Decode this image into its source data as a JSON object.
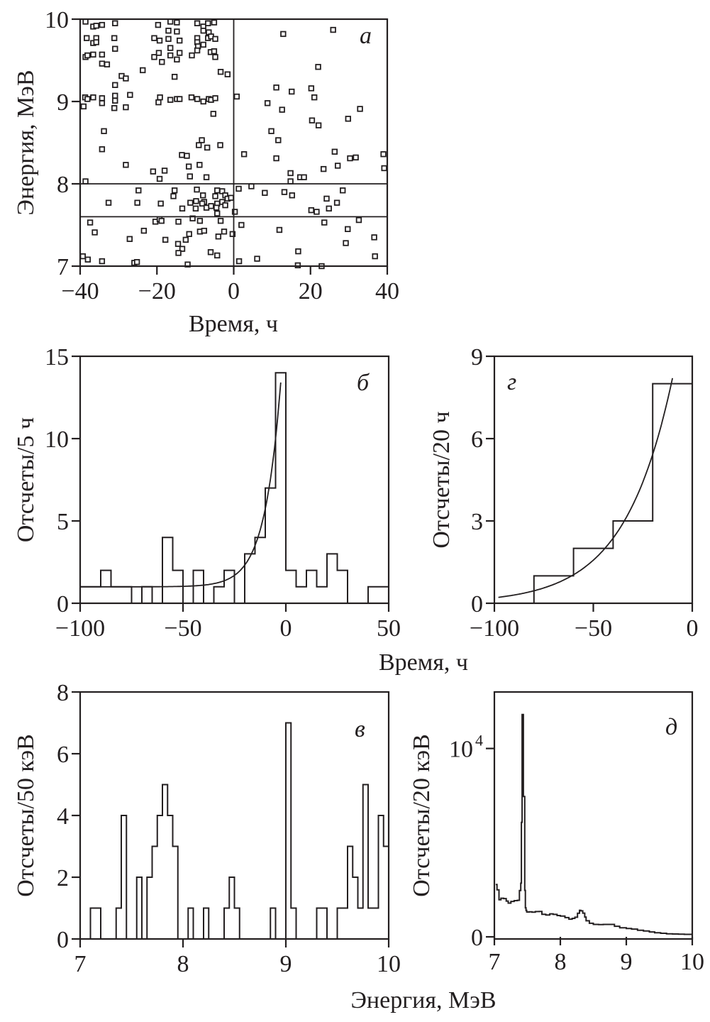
{
  "chart_data": [
    {
      "id": "a",
      "type": "scatter",
      "panel_label": "а",
      "xlabel": "Время, ч",
      "ylabel": "Энергия, МэВ",
      "xlim": [
        -40,
        40
      ],
      "ylim": [
        7,
        10
      ],
      "xticks": [
        -40,
        -20,
        0,
        20,
        40
      ],
      "xtick_labels": [
        "−40",
        "−20",
        "0",
        "20",
        "40"
      ],
      "yticks": [
        7,
        8,
        9,
        10
      ],
      "ytick_labels": [
        "7",
        "8",
        "9",
        "10"
      ],
      "reference_lines": {
        "horizontal": [
          8.0,
          7.6
        ],
        "vertical": [
          0
        ]
      },
      "marker": "open-square",
      "points": [
        [
          -38.6,
          9.97
        ],
        [
          -36.6,
          9.91
        ],
        [
          -35.8,
          9.92
        ],
        [
          -34.3,
          9.93
        ],
        [
          -30.9,
          9.95
        ],
        [
          -38.3,
          9.77
        ],
        [
          -35.8,
          9.77
        ],
        [
          -36.6,
          9.71
        ],
        [
          -35.8,
          9.72
        ],
        [
          -31.1,
          9.77
        ],
        [
          -30.9,
          9.64
        ],
        [
          -38.6,
          9.54
        ],
        [
          -38.1,
          9.56
        ],
        [
          -36.6,
          9.57
        ],
        [
          -34.3,
          9.57
        ],
        [
          -34.3,
          9.46
        ],
        [
          -33.0,
          9.45
        ],
        [
          -29.2,
          9.31
        ],
        [
          -28.1,
          9.28
        ],
        [
          -23.7,
          9.38
        ],
        [
          -30.9,
          9.2
        ],
        [
          -38.7,
          9.05
        ],
        [
          -38.1,
          9.03
        ],
        [
          -36.6,
          9.05
        ],
        [
          -34.3,
          9.04
        ],
        [
          -34.3,
          8.98
        ],
        [
          -30.9,
          9.07
        ],
        [
          -30.9,
          9.01
        ],
        [
          -31.1,
          8.92
        ],
        [
          -28.1,
          8.93
        ],
        [
          -27.0,
          9.08
        ],
        [
          -39.1,
          8.94
        ],
        [
          -33.8,
          8.64
        ],
        [
          -19.7,
          9.93
        ],
        [
          -16.5,
          9.97
        ],
        [
          -14.8,
          9.96
        ],
        [
          -17.0,
          9.86
        ],
        [
          -14.8,
          9.85
        ],
        [
          -20.7,
          9.77
        ],
        [
          -19.3,
          9.74
        ],
        [
          -17.0,
          9.76
        ],
        [
          -14.1,
          9.74
        ],
        [
          -16.5,
          9.65
        ],
        [
          -20.7,
          9.54
        ],
        [
          -19.5,
          9.59
        ],
        [
          -18.7,
          9.48
        ],
        [
          -16.5,
          9.56
        ],
        [
          -14.1,
          9.59
        ],
        [
          -14.8,
          9.51
        ],
        [
          -15.4,
          9.3
        ],
        [
          -19.6,
          8.99
        ],
        [
          -19.2,
          9.05
        ],
        [
          -16.5,
          9.02
        ],
        [
          -14.8,
          9.03
        ],
        [
          -14.1,
          9.03
        ],
        [
          -11.0,
          9.05
        ],
        [
          -9.5,
          9.03
        ],
        [
          -7.9,
          9.0
        ],
        [
          -6.5,
          9.03
        ],
        [
          -5.9,
          9.02
        ],
        [
          -4.8,
          9.04
        ],
        [
          -5.3,
          8.85
        ],
        [
          -9.5,
          9.95
        ],
        [
          -7.9,
          9.91
        ],
        [
          -6.7,
          9.95
        ],
        [
          -5.1,
          9.96
        ],
        [
          -7.9,
          9.86
        ],
        [
          -6.5,
          9.84
        ],
        [
          -6.7,
          9.77
        ],
        [
          -5.9,
          9.79
        ],
        [
          -4.8,
          9.76
        ],
        [
          -9.5,
          9.77
        ],
        [
          -9.5,
          9.72
        ],
        [
          -9.3,
          9.67
        ],
        [
          -7.9,
          9.69
        ],
        [
          -9.5,
          9.62
        ],
        [
          -10.9,
          9.56
        ],
        [
          -6.0,
          9.6
        ],
        [
          -5.1,
          9.61
        ],
        [
          -4.8,
          9.54
        ],
        [
          -3.4,
          9.36
        ],
        [
          -1.6,
          9.33
        ],
        [
          -34.3,
          8.42
        ],
        [
          -8.3,
          8.53
        ],
        [
          -9.1,
          8.47
        ],
        [
          -6.9,
          8.44
        ],
        [
          -3.5,
          8.47
        ],
        [
          -13.5,
          8.35
        ],
        [
          -12.2,
          8.34
        ],
        [
          -28.1,
          8.23
        ],
        [
          -11.7,
          8.21
        ],
        [
          -8.9,
          8.23
        ],
        [
          -21.0,
          8.15
        ],
        [
          -18.0,
          8.16
        ],
        [
          -19.3,
          8.06
        ],
        [
          -11.4,
          8.09
        ],
        [
          -7.1,
          8.08
        ],
        [
          -38.6,
          8.03
        ],
        [
          -24.8,
          7.92
        ],
        [
          -15.4,
          7.92
        ],
        [
          -15.7,
          7.85
        ],
        [
          -9.6,
          7.93
        ],
        [
          -8.0,
          7.86
        ],
        [
          -4.3,
          7.92
        ],
        [
          -3.0,
          7.91
        ],
        [
          -4.8,
          7.85
        ],
        [
          -2.2,
          7.86
        ],
        [
          -32.6,
          7.77
        ],
        [
          -25.1,
          7.77
        ],
        [
          -19.0,
          7.76
        ],
        [
          -11.3,
          7.77
        ],
        [
          -9.8,
          7.79
        ],
        [
          -7.7,
          7.78
        ],
        [
          -8.2,
          7.76
        ],
        [
          -4.3,
          7.76
        ],
        [
          -3.0,
          7.78
        ],
        [
          -2.2,
          7.74
        ],
        [
          -1.6,
          7.82
        ],
        [
          -0.7,
          7.83
        ],
        [
          -13.4,
          7.7
        ],
        [
          -9.9,
          7.7
        ],
        [
          -7.1,
          7.71
        ],
        [
          -5.9,
          7.73
        ],
        [
          -4.5,
          7.71
        ],
        [
          -4.3,
          7.64
        ],
        [
          0.3,
          7.66
        ],
        [
          -37.4,
          7.53
        ],
        [
          -20.4,
          7.54
        ],
        [
          -19.3,
          7.57
        ],
        [
          -18.8,
          7.55
        ],
        [
          -14.4,
          7.54
        ],
        [
          -10.7,
          7.58
        ],
        [
          -8.8,
          7.55
        ],
        [
          -3.4,
          7.55
        ],
        [
          -36.2,
          7.41
        ],
        [
          -23.4,
          7.43
        ],
        [
          -27.1,
          7.33
        ],
        [
          -17.8,
          7.32
        ],
        [
          -11.6,
          7.39
        ],
        [
          -12.5,
          7.32
        ],
        [
          -8.8,
          7.42
        ],
        [
          -7.7,
          7.43
        ],
        [
          -4.0,
          7.36
        ],
        [
          -2.5,
          7.42
        ],
        [
          -0.3,
          7.39
        ],
        [
          -14.5,
          7.27
        ],
        [
          -13.4,
          7.21
        ],
        [
          -14.4,
          7.16
        ],
        [
          -6.0,
          7.17
        ],
        [
          -4.3,
          7.13
        ],
        [
          -39.3,
          7.12
        ],
        [
          -38.0,
          7.08
        ],
        [
          -34.3,
          7.06
        ],
        [
          -25.9,
          7.04
        ],
        [
          -25.2,
          7.05
        ],
        [
          -12.0,
          7.02
        ],
        [
          12.9,
          9.82
        ],
        [
          25.9,
          9.87
        ],
        [
          22.0,
          9.42
        ],
        [
          11.1,
          9.17
        ],
        [
          15.1,
          9.12
        ],
        [
          20.2,
          9.16
        ],
        [
          21.0,
          9.05
        ],
        [
          0.8,
          9.06
        ],
        [
          8.8,
          8.98
        ],
        [
          12.6,
          8.9
        ],
        [
          32.9,
          8.91
        ],
        [
          29.8,
          8.79
        ],
        [
          20.4,
          8.77
        ],
        [
          22.1,
          8.71
        ],
        [
          9.8,
          8.64
        ],
        [
          11.6,
          8.53
        ],
        [
          2.7,
          8.36
        ],
        [
          11.1,
          8.31
        ],
        [
          26.3,
          8.39
        ],
        [
          30.3,
          8.31
        ],
        [
          31.8,
          8.32
        ],
        [
          39.0,
          8.36
        ],
        [
          27.1,
          8.22
        ],
        [
          39.2,
          8.19
        ],
        [
          23.4,
          8.18
        ],
        [
          14.8,
          8.13
        ],
        [
          17.3,
          8.08
        ],
        [
          18.3,
          8.08
        ],
        [
          14.8,
          8.03
        ],
        [
          1.3,
          7.94
        ],
        [
          4.6,
          7.97
        ],
        [
          8.1,
          7.89
        ],
        [
          13.2,
          7.9
        ],
        [
          15.2,
          7.86
        ],
        [
          28.4,
          7.92
        ],
        [
          24.2,
          7.82
        ],
        [
          26.9,
          7.77
        ],
        [
          20.2,
          7.68
        ],
        [
          21.6,
          7.66
        ],
        [
          24.8,
          7.7
        ],
        [
          2.0,
          7.5
        ],
        [
          11.9,
          7.44
        ],
        [
          23.6,
          7.53
        ],
        [
          32.6,
          7.56
        ],
        [
          29.7,
          7.45
        ],
        [
          36.6,
          7.35
        ],
        [
          29.2,
          7.28
        ],
        [
          16.8,
          7.18
        ],
        [
          36.8,
          7.12
        ],
        [
          6.1,
          7.09
        ],
        [
          1.4,
          7.06
        ],
        [
          16.7,
          7.01
        ],
        [
          22.9,
          7.0
        ]
      ]
    },
    {
      "id": "b",
      "type": "bar",
      "subtype": "step-histogram-with-fit",
      "panel_label": "б",
      "xlabel": "Время, ч",
      "ylabel": "Отсчеты/5 ч",
      "xlim": [
        -100,
        50
      ],
      "ylim": [
        0,
        15
      ],
      "xticks": [
        -100,
        -50,
        0,
        50
      ],
      "xtick_labels": [
        "−100",
        "−50",
        "0",
        "50"
      ],
      "yticks": [
        0,
        5,
        10,
        15
      ],
      "ytick_labels": [
        "0",
        "5",
        "10",
        "15"
      ],
      "bin_edges_start": -100,
      "bin_width": 5,
      "values": [
        1,
        1,
        2,
        1,
        1,
        0,
        1,
        0,
        4,
        2,
        0,
        2,
        0,
        1,
        2,
        0,
        3,
        4,
        7,
        14,
        2,
        1,
        2,
        1,
        3,
        2,
        0,
        0,
        1,
        1
      ],
      "fit": {
        "model": "background + exponential",
        "background": 1.0,
        "amplitude": 17.1,
        "tau_h": 7.8,
        "x_range": [
          -100,
          -2.5
        ]
      }
    },
    {
      "id": "g",
      "type": "bar",
      "subtype": "step-histogram-with-fit",
      "panel_label": "г",
      "xlabel": "",
      "ylabel": "Отсчеты/20 ч",
      "xlim": [
        -100,
        0
      ],
      "ylim": [
        0,
        9
      ],
      "xticks": [
        -100,
        -50,
        0
      ],
      "xtick_labels": [
        "−100",
        "−50",
        "0"
      ],
      "yticks": [
        0,
        3,
        6,
        9
      ],
      "ytick_labels": [
        "0",
        "3",
        "6",
        "9"
      ],
      "bin_edges_start": -100,
      "bin_width": 20,
      "values": [
        0,
        1,
        2,
        3,
        8
      ],
      "fit": {
        "model": "exponential",
        "amplitude": 12.4,
        "tau_h": 24.2,
        "x_range": [
          -98,
          -10
        ]
      }
    },
    {
      "id": "v",
      "type": "bar",
      "subtype": "step-histogram",
      "panel_label": "в",
      "xlabel": "Энергия, МэВ",
      "ylabel": "Отсчеты/50 кэВ",
      "xlim": [
        7,
        10
      ],
      "ylim": [
        0,
        8
      ],
      "xticks": [
        7,
        8,
        9,
        10
      ],
      "xtick_labels": [
        "7",
        "8",
        "9",
        "10"
      ],
      "yticks": [
        0,
        2,
        4,
        6,
        8
      ],
      "ytick_labels": [
        "0",
        "2",
        "4",
        "6",
        "8"
      ],
      "bin_edges_start": 7.0,
      "bin_width": 0.05,
      "values": [
        0,
        0,
        1,
        1,
        0,
        0,
        0,
        1,
        4,
        0,
        0,
        2,
        0,
        2,
        3,
        4,
        5,
        4,
        3,
        0,
        0,
        1,
        0,
        0,
        1,
        0,
        0,
        0,
        1,
        2,
        1,
        0,
        0,
        0,
        0,
        0,
        0,
        1,
        0,
        0,
        7,
        1,
        0,
        0,
        0,
        0,
        1,
        1,
        0,
        0,
        1,
        1,
        3,
        2,
        1,
        5,
        1,
        1,
        4,
        3
      ]
    },
    {
      "id": "d",
      "type": "line",
      "subtype": "spectrum",
      "panel_label": "д",
      "xlabel": "Энергия, МэВ",
      "ylabel": "Отсчеты/20 кэВ",
      "xlim": [
        7,
        10
      ],
      "ylim": [
        0,
        13000
      ],
      "xticks": [
        7,
        8,
        9,
        10
      ],
      "xtick_labels": [
        "7",
        "8",
        "9",
        "10"
      ],
      "yticks": [
        0,
        10000
      ],
      "ytick_labels": [
        "0",
        "10^4"
      ],
      "x": [
        7.02,
        7.04,
        7.07,
        7.1,
        7.14,
        7.18,
        7.21,
        7.25,
        7.3,
        7.35,
        7.38,
        7.4,
        7.41,
        7.42,
        7.43,
        7.44,
        7.45,
        7.46,
        7.47,
        7.48,
        7.49,
        7.53,
        7.57,
        7.62,
        7.68,
        7.72,
        7.78,
        7.84,
        7.89,
        7.95,
        8.0,
        8.07,
        8.13,
        8.18,
        8.22,
        8.26,
        8.29,
        8.31,
        8.34,
        8.37,
        8.39,
        8.44,
        8.5,
        8.58,
        8.65,
        8.75,
        8.82,
        8.9,
        9.0,
        9.08,
        9.17,
        9.26,
        9.35,
        9.43,
        9.52,
        9.61,
        9.7,
        9.79,
        9.88,
        9.99
      ],
      "y": [
        2780,
        2500,
        1970,
        2050,
        2030,
        1900,
        1790,
        1880,
        1920,
        1940,
        2460,
        2850,
        6080,
        11800,
        11800,
        7450,
        7450,
        2470,
        1540,
        1400,
        1320,
        1330,
        1310,
        1340,
        1350,
        1200,
        1160,
        1220,
        1190,
        1130,
        1100,
        1020,
        940,
        980,
        1040,
        1250,
        1410,
        1380,
        1260,
        1050,
        850,
        720,
        660,
        650,
        660,
        660,
        560,
        480,
        440,
        410,
        350,
        310,
        260,
        220,
        190,
        160,
        150,
        140,
        130,
        140
      ]
    }
  ]
}
